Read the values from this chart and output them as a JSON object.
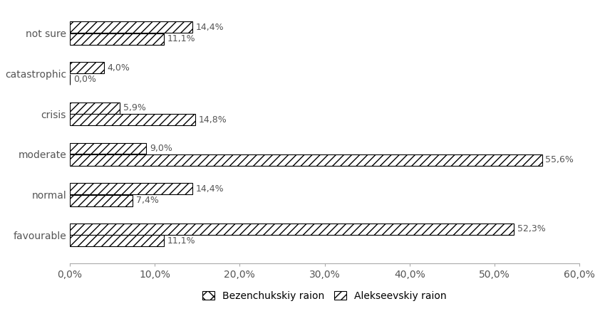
{
  "categories": [
    "favourable",
    "normal",
    "moderate",
    "crisis",
    "catastrophic",
    "not sure"
  ],
  "bezenchukskiy": [
    11.1,
    7.4,
    55.6,
    14.8,
    0.0,
    11.1
  ],
  "alekseevskiy": [
    52.3,
    14.4,
    9.0,
    5.9,
    4.0,
    14.4
  ],
  "xticks": [
    0,
    10,
    20,
    30,
    40,
    50,
    60
  ],
  "xtick_labels": [
    "0,0%",
    "10,0%",
    "20,0%",
    "30,0%",
    "40,0%",
    "50,0%",
    "60,0%"
  ],
  "legend_labels": [
    "Bezenchukskiy raion",
    "Alekseevskiy raion"
  ],
  "background_color": "#ffffff",
  "bar_height": 0.28,
  "fontsize": 10,
  "label_fontsize": 9,
  "bar_gap": 0.01
}
